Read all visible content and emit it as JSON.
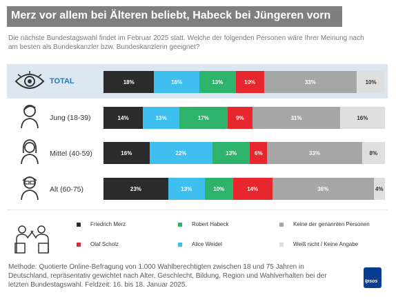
{
  "title": "Merz vor allem bei Älteren beliebt, Habeck bei Jüngeren vorn",
  "subtitle": "Die nächste Bundestagswahl findet im Februar 2025 statt. Welche der folgenden Personen wäre Ihrer Meinung nach am besten als Bundeskanzler bzw. Bundeskanzlerin geeignet?",
  "colors": {
    "merz": "#2b2b2b",
    "weidel": "#3fbef0",
    "habeck": "#2db36a",
    "scholz": "#e8262d",
    "keine": "#a6a6a6",
    "weiss_nicht": "#dedede",
    "total_band": "#dbe6f0",
    "title_bg": "#7f7f7f"
  },
  "chart_data": {
    "type": "bar",
    "orientation": "horizontal",
    "stacked": true,
    "normalized": true,
    "categories": [
      "TOTAL",
      "Jung (18-39)",
      "Mittel (40-59)",
      "Alt (60-75)"
    ],
    "series": [
      {
        "name": "Friedrich Merz",
        "color_key": "merz",
        "values": [
          18,
          14,
          16,
          23
        ],
        "labels": [
          "18%",
          "14%",
          "16%",
          "23%"
        ]
      },
      {
        "name": "Alice Weidel",
        "color_key": "weidel",
        "values": [
          16,
          13,
          22,
          13
        ],
        "labels": [
          "16%",
          "13%",
          "22%",
          "13%"
        ]
      },
      {
        "name": "Robert Habeck",
        "color_key": "habeck",
        "values": [
          13,
          17,
          13,
          10
        ],
        "labels": [
          "13%",
          "17%",
          "13%",
          "10%"
        ]
      },
      {
        "name": "Olaf Scholz",
        "color_key": "scholz",
        "values": [
          10,
          9,
          6,
          14
        ],
        "labels": [
          "10%",
          "9%",
          "6%",
          "14%"
        ]
      },
      {
        "name": "Keine der genannten Personen",
        "color_key": "keine",
        "values": [
          33,
          31,
          33,
          36
        ],
        "labels": [
          "33%",
          "31%",
          "33%",
          "36%"
        ]
      },
      {
        "name": "Weiß nicht / Keine Angabe",
        "color_key": "weiss_nicht",
        "values": [
          10,
          16,
          8,
          4
        ],
        "labels": [
          "10%",
          "16%",
          "8%",
          "4%"
        ]
      }
    ],
    "legend_order": [
      "Friedrich Merz",
      "Robert Habeck",
      "Keine der genannten Personen",
      "Olaf Scholz",
      "Alice Weidel",
      "Weiß nicht / Keine Angabe"
    ]
  },
  "rows": [
    {
      "label": "TOTAL",
      "icon": "eye-icon"
    },
    {
      "label": "Jung (18-39)",
      "icon": "young-person-icon"
    },
    {
      "label": "Mittel (40-59)",
      "icon": "middle-aged-person-icon"
    },
    {
      "label": "Alt (60-75)",
      "icon": "elderly-person-icon"
    }
  ],
  "legend_icon": "politicians-debate-icon",
  "method": "Methode: Quotierte Online-Befragung von 1.000 Wahlberechtigten zwischen 18 und 75 Jahren in Deutschland, repräsentativ gewichtet nach Alter, Geschlecht, Bildung, Region und Wahlverhalten bei der letzten Bundestagswahl. Feldzeit: 16. bis 18. Januar 2025.",
  "logo_text": "Ipsos"
}
